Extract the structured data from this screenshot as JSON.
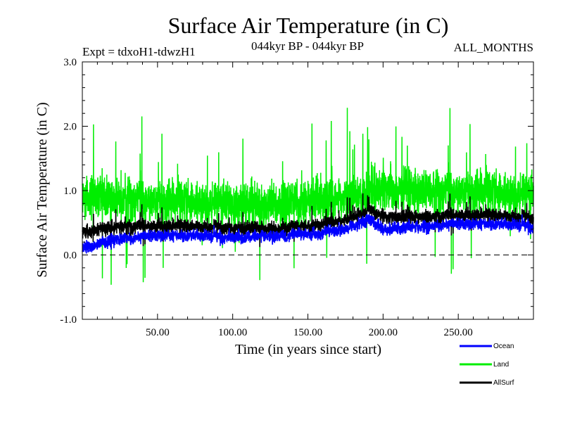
{
  "chart_data": {
    "type": "line",
    "title": "Surface Air Temperature (in C)",
    "subtitle_left": "Expt = tdxoH1-tdwzH1",
    "subtitle_center": "044kyr BP - 044kyr BP",
    "subtitle_right": "ALL_MONTHS",
    "xlabel": "Time (in years since start)",
    "ylabel": "Surface Air Temperature (in C)",
    "xlim": [
      0,
      300
    ],
    "ylim": [
      -1.0,
      3.0
    ],
    "x_ticks": [
      50,
      100,
      150,
      200,
      250
    ],
    "x_tick_labels": [
      "50.00",
      "100.00",
      "150.00",
      "200.00",
      "250.00"
    ],
    "y_ticks": [
      -1.0,
      0.0,
      1.0,
      2.0,
      3.0
    ],
    "y_tick_labels": [
      "-1.0",
      "0.0",
      "1.0",
      "2.0",
      "3.0"
    ],
    "reference_line": 0.0,
    "series_mean_trend": {
      "x": [
        0,
        25,
        50,
        75,
        100,
        125,
        150,
        175,
        190,
        200,
        225,
        250,
        275,
        300
      ],
      "Ocean": [
        0.1,
        0.25,
        0.3,
        0.3,
        0.28,
        0.3,
        0.32,
        0.4,
        0.55,
        0.4,
        0.45,
        0.48,
        0.48,
        0.45
      ],
      "Land": [
        0.9,
        0.9,
        0.85,
        0.85,
        0.8,
        0.8,
        0.85,
        0.9,
        1.0,
        1.05,
        1.0,
        1.0,
        1.0,
        0.95
      ],
      "AllSurf": [
        0.35,
        0.45,
        0.45,
        0.45,
        0.42,
        0.42,
        0.45,
        0.55,
        0.7,
        0.6,
        0.6,
        0.62,
        0.62,
        0.58
      ]
    },
    "series": [
      {
        "name": "Ocean",
        "color": "#0000ff"
      },
      {
        "name": "Land",
        "color": "#00ee00"
      },
      {
        "name": "AllSurf",
        "color": "#000000"
      }
    ],
    "legend_position": "bottom-right"
  }
}
